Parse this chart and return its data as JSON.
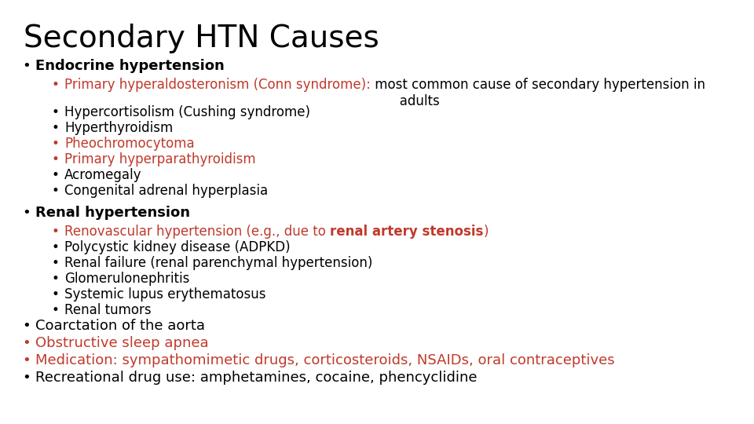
{
  "title": "Secondary HTN Causes",
  "title_fontsize": 28,
  "background_color": "#ffffff",
  "black": "#000000",
  "red": "#c0392b",
  "font_family": "DejaVu Sans",
  "fs_l0": 13,
  "fs_l1": 12,
  "content": [
    {
      "level": 0,
      "bold": true,
      "parts": [
        {
          "text": "Endocrine hypertension",
          "color": "#000000",
          "bold": true
        }
      ]
    },
    {
      "level": 1,
      "parts": [
        {
          "text": "Primary hyperaldosteronism (Conn syndrome):",
          "color": "#c0392b",
          "bold": false
        },
        {
          "text": " most common cause of secondary hypertension in\n       adults",
          "color": "#000000",
          "bold": false
        }
      ]
    },
    {
      "level": 1,
      "parts": [
        {
          "text": "Hypercortisolism (Cushing syndrome)",
          "color": "#000000",
          "bold": false
        }
      ]
    },
    {
      "level": 1,
      "parts": [
        {
          "text": "Hyperthyroidism",
          "color": "#000000",
          "bold": false
        }
      ]
    },
    {
      "level": 1,
      "parts": [
        {
          "text": "Pheochromocytoma",
          "color": "#c0392b",
          "bold": false
        }
      ]
    },
    {
      "level": 1,
      "parts": [
        {
          "text": "Primary hyperparathyroidism",
          "color": "#c0392b",
          "bold": false
        }
      ]
    },
    {
      "level": 1,
      "parts": [
        {
          "text": "Acromegaly",
          "color": "#000000",
          "bold": false
        }
      ]
    },
    {
      "level": 1,
      "parts": [
        {
          "text": "Congenital adrenal hyperplasia",
          "color": "#000000",
          "bold": false
        }
      ]
    },
    {
      "level": 0,
      "bold": true,
      "parts": [
        {
          "text": "Renal hypertension",
          "color": "#000000",
          "bold": true
        }
      ]
    },
    {
      "level": 1,
      "parts": [
        {
          "text": "Renovascular hypertension (e.g., due to ",
          "color": "#c0392b",
          "bold": false
        },
        {
          "text": "renal artery stenosis",
          "color": "#c0392b",
          "bold": true
        },
        {
          "text": ")",
          "color": "#c0392b",
          "bold": false
        }
      ]
    },
    {
      "level": 1,
      "parts": [
        {
          "text": "Polycystic kidney disease (ADPKD)",
          "color": "#000000",
          "bold": false
        }
      ]
    },
    {
      "level": 1,
      "parts": [
        {
          "text": "Renal failure (renal parenchymal hypertension)",
          "color": "#000000",
          "bold": false
        }
      ]
    },
    {
      "level": 1,
      "parts": [
        {
          "text": "Glomerulonephritis",
          "color": "#000000",
          "bold": false
        }
      ]
    },
    {
      "level": 1,
      "parts": [
        {
          "text": "Systemic lupus erythematosus",
          "color": "#000000",
          "bold": false
        }
      ]
    },
    {
      "level": 1,
      "parts": [
        {
          "text": "Renal tumors",
          "color": "#000000",
          "bold": false
        }
      ]
    },
    {
      "level": 0,
      "bold": false,
      "parts": [
        {
          "text": "Coarctation of the aorta",
          "color": "#000000",
          "bold": false
        }
      ]
    },
    {
      "level": 0,
      "bold": false,
      "parts": [
        {
          "text": "Obstructive sleep apnea",
          "color": "#c0392b",
          "bold": false
        }
      ]
    },
    {
      "level": 0,
      "bold": false,
      "parts": [
        {
          "text": "Medication: sympathomimetic drugs, corticosteroids, NSAIDs, oral contraceptives",
          "color": "#c0392b",
          "bold": false
        }
      ]
    },
    {
      "level": 0,
      "bold": false,
      "parts": [
        {
          "text": "Recreational drug use: amphetamines, cocaine, phencyclidine",
          "color": "#000000",
          "bold": false
        }
      ]
    }
  ]
}
